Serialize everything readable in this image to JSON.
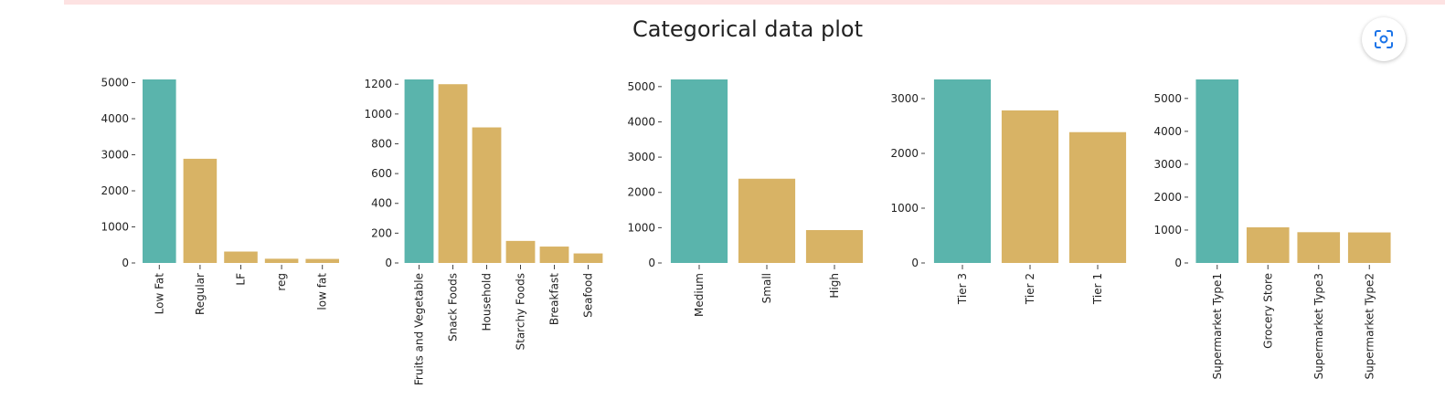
{
  "title": "Categorical data plot",
  "lens_button": {
    "icon": "lens-icon"
  },
  "colors": {
    "highlight": "#5ab4ac",
    "other": "#d8b365"
  },
  "chart_data": [
    {
      "type": "bar",
      "categories": [
        "Low Fat",
        "Regular",
        "LF",
        "reg",
        "low fat"
      ],
      "values": [
        5089,
        2889,
        316,
        117,
        112
      ],
      "yticks": [
        0,
        1000,
        2000,
        3000,
        4000,
        5000
      ],
      "ylim": [
        0,
        5089
      ]
    },
    {
      "type": "bar",
      "categories": [
        "Fruits and Vegetable",
        "Snack Foods",
        "Household",
        "Starchy Foods",
        "Breakfast",
        "Seafood"
      ],
      "values": [
        1232,
        1200,
        910,
        148,
        110,
        64
      ],
      "yticks": [
        0,
        200,
        400,
        600,
        800,
        1000,
        1200
      ],
      "ylim": [
        0,
        1232
      ]
    },
    {
      "type": "bar",
      "categories": [
        "Medium",
        "Small",
        "High"
      ],
      "values": [
        5203,
        2388,
        932
      ],
      "yticks": [
        0,
        1000,
        2000,
        3000,
        4000,
        5000
      ],
      "ylim": [
        0,
        5203
      ]
    },
    {
      "type": "bar",
      "categories": [
        "Tier 3",
        "Tier 2",
        "Tier 1"
      ],
      "values": [
        3350,
        2785,
        2388
      ],
      "yticks": [
        0,
        1000,
        2000,
        3000
      ],
      "ylim": [
        0,
        3350
      ]
    },
    {
      "type": "bar",
      "categories": [
        "Supermarket Type1",
        "Grocery Store",
        "Supermarket Type3",
        "Supermarket Type2"
      ],
      "values": [
        5577,
        1083,
        935,
        928
      ],
      "yticks": [
        0,
        1000,
        2000,
        3000,
        4000,
        5000
      ],
      "ylim": [
        0,
        5577
      ]
    }
  ]
}
